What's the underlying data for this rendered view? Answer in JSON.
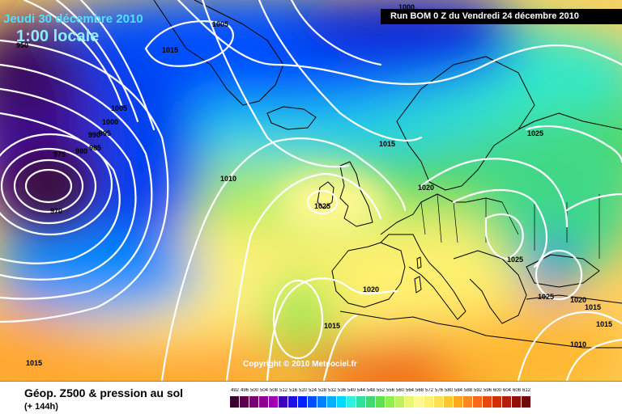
{
  "header": {
    "date": "Jeudi 30 décembre 2010",
    "time": "1:00 locale",
    "run": "Run BOM 0 Z du Vendredi 24 décembre 2010"
  },
  "copyright": "Copyright © 2010 Meteociel.fr",
  "footer": {
    "title": "Géop. Z500 & pression au sol",
    "subtitle": "(+ 144h)"
  },
  "legend": {
    "levels": [
      "492",
      "496",
      "500",
      "504",
      "508",
      "512",
      "516",
      "520",
      "524",
      "528",
      "532",
      "536",
      "540",
      "544",
      "548",
      "552",
      "556",
      "560",
      "564",
      "568",
      "572",
      "576",
      "580",
      "584",
      "588",
      "592",
      "596",
      "600",
      "604",
      "608",
      "612"
    ],
    "colors": [
      "#3a0030",
      "#5a0050",
      "#780070",
      "#900090",
      "#a000b0",
      "#4000c0",
      "#2010e0",
      "#0020ff",
      "#0050ff",
      "#0080ff",
      "#00b0ff",
      "#00d8ff",
      "#30f0e0",
      "#30e0a0",
      "#40d870",
      "#60e050",
      "#90f050",
      "#c0f060",
      "#e8f870",
      "#fff890",
      "#fff070",
      "#ffe050",
      "#ffc830",
      "#ffa820",
      "#ff8820",
      "#f86818",
      "#e84810",
      "#d03008",
      "#b02008",
      "#901008",
      "#700808"
    ]
  },
  "isobar_labels": [
    "1005",
    "1015",
    "1005",
    "1000",
    "995",
    "990",
    "985",
    "980",
    "975",
    "970",
    "950",
    "1010",
    "1025",
    "1015",
    "1020",
    "1025",
    "1025",
    "1020",
    "1015",
    "1015",
    "1010",
    "1020",
    "1015",
    "1015",
    "1000",
    "1025"
  ],
  "map_colors": {
    "land_border": "#000000",
    "isobar": "#ffffff",
    "deep_low": "#4a0a50",
    "violet": "#5a10a0",
    "blue": "#0030e0",
    "mid_blue": "#0070ff",
    "cyan": "#00c8ff",
    "teal": "#30e8d0",
    "green": "#50d860",
    "yellow_green": "#b8f060",
    "yellow": "#fff880",
    "orange": "#ffb030",
    "dark_orange": "#f07018"
  }
}
